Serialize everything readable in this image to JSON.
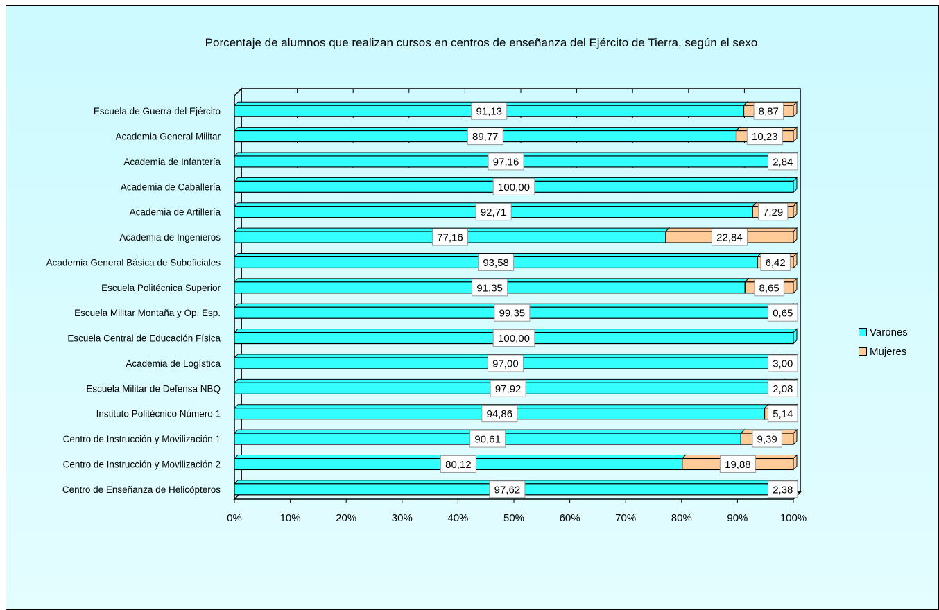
{
  "chart_data": {
    "type": "bar",
    "orientation": "horizontal",
    "stacked": "percent",
    "title": "Porcentaje de alumnos que realizan cursos en centros de enseñanza del Ejército de Tierra, según el sexo",
    "categories": [
      "Escuela de Guerra del Ejército",
      "Academia General Militar",
      "Academia de Infantería",
      "Academia de Caballería",
      "Academia de Artillería",
      "Academia de Ingenieros",
      "Academia General Básica de Suboficiales",
      "Escuela Politécnica Superior",
      "Escuela Militar Montaña y Op. Esp.",
      "Escuela Central de Educación Física",
      "Academia de Logística",
      "Escuela Militar de Defensa NBQ",
      "Instituto Politécnico Número 1",
      "Centro de Instrucción y Movilización 1",
      "Centro de Instrucción y Movilización 2",
      "Centro de Enseñanza de Helicópteros"
    ],
    "series": [
      {
        "name": "Varones",
        "color": "#33ffff",
        "values": [
          91.13,
          89.77,
          97.16,
          100.0,
          92.71,
          77.16,
          93.58,
          91.35,
          99.35,
          100.0,
          97.0,
          97.92,
          94.86,
          90.61,
          80.12,
          97.62
        ],
        "labels": [
          "91,13",
          "89,77",
          "97,16",
          "100,00",
          "92,71",
          "77,16",
          "93,58",
          "91,35",
          "99,35",
          "100,00",
          "97,00",
          "97,92",
          "94,86",
          "90,61",
          "80,12",
          "97,62"
        ]
      },
      {
        "name": "Mujeres",
        "color": "#ffcc99",
        "values": [
          8.87,
          10.23,
          2.84,
          0,
          7.29,
          22.84,
          6.42,
          8.65,
          0.65,
          0,
          3.0,
          2.08,
          5.14,
          9.39,
          19.88,
          2.38
        ],
        "labels": [
          "8,87",
          "10,23",
          "2,84",
          "",
          "7,29",
          "22,84",
          "6,42",
          "8,65",
          "0,65",
          "",
          "3,00",
          "2,08",
          "5,14",
          "9,39",
          "19,88",
          "2,38"
        ]
      }
    ],
    "x_ticks": [
      "0%",
      "10%",
      "20%",
      "30%",
      "40%",
      "50%",
      "60%",
      "70%",
      "80%",
      "90%",
      "100%"
    ],
    "xlim": [
      0,
      100
    ],
    "grid": true,
    "legend_position": "right"
  }
}
